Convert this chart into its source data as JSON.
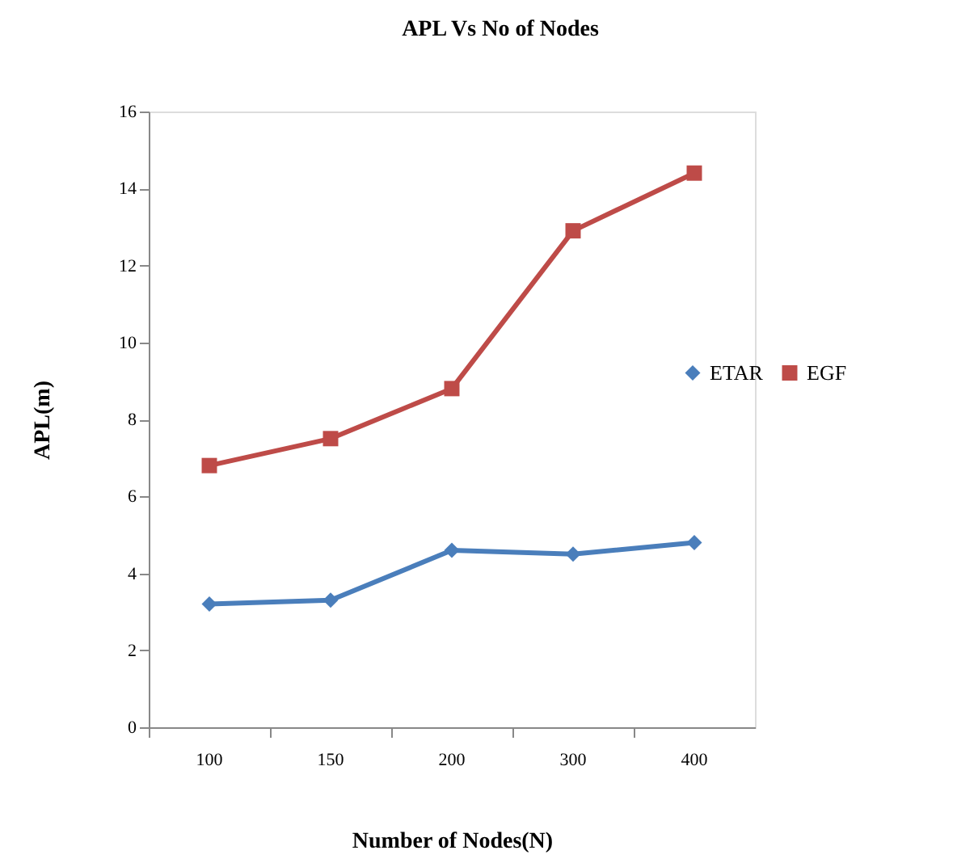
{
  "chart_data": {
    "type": "line",
    "title": "APL Vs No of Nodes",
    "xlabel": "Number of Nodes(N)",
    "ylabel": "APL(m)",
    "categories": [
      "100",
      "150",
      "200",
      "300",
      "400"
    ],
    "series": [
      {
        "name": "ETAR",
        "color": "#4a7ebb",
        "marker": "diamond",
        "values": [
          3.2,
          3.3,
          4.6,
          4.5,
          4.8
        ]
      },
      {
        "name": "EGF",
        "color": "#be4b48",
        "marker": "square",
        "values": [
          6.8,
          7.5,
          8.8,
          12.9,
          14.4
        ]
      }
    ],
    "ylim": [
      0,
      16
    ],
    "yticks": [
      0,
      2,
      4,
      6,
      8,
      10,
      12,
      14,
      16
    ],
    "grid": false,
    "legend": "right",
    "line_style": "solid"
  }
}
